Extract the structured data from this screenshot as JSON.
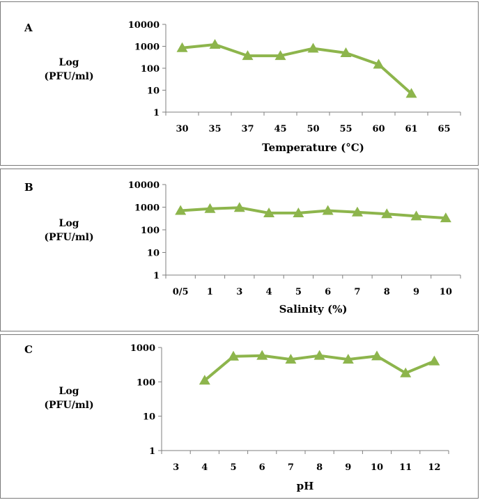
{
  "colors": {
    "series": "#8db54c",
    "axis": "#7f7f7f"
  },
  "chart_data": [
    {
      "type": "line",
      "panel_label": "A",
      "ylabel_line1": "Log",
      "ylabel_line2": "(PFU/ml)",
      "xlabel": "Temperature (°C)",
      "yscale": "log",
      "ylim": [
        1,
        10000
      ],
      "yticks": [
        "1",
        "10",
        "100",
        "1000",
        "10000"
      ],
      "categories": [
        "30",
        "35",
        "37",
        "45",
        "50",
        "55",
        "60",
        "61",
        "65"
      ],
      "values": [
        850,
        1200,
        370,
        370,
        800,
        500,
        150,
        7,
        null
      ]
    },
    {
      "type": "line",
      "panel_label": "B",
      "ylabel_line1": "Log",
      "ylabel_line2": "(PFU/ml)",
      "xlabel": "Salinity (%)",
      "yscale": "log",
      "ylim": [
        1,
        10000
      ],
      "yticks": [
        "1",
        "10",
        "100",
        "1000",
        "10000"
      ],
      "categories": [
        "0/5",
        "1",
        "3",
        "4",
        "5",
        "6",
        "7",
        "8",
        "9",
        "10"
      ],
      "values": [
        700,
        850,
        950,
        550,
        550,
        700,
        600,
        500,
        400,
        330
      ]
    },
    {
      "type": "line",
      "panel_label": "C",
      "ylabel_line1": "Log",
      "ylabel_line2": "(PFU/ml)",
      "xlabel": "pH",
      "yscale": "log",
      "ylim": [
        1,
        1000
      ],
      "yticks": [
        "1",
        "10",
        "100",
        "1000"
      ],
      "categories": [
        "3",
        "4",
        "5",
        "6",
        "7",
        "8",
        "9",
        "10",
        "11",
        "12"
      ],
      "values": [
        null,
        110,
        550,
        580,
        450,
        580,
        450,
        560,
        180,
        400
      ]
    }
  ]
}
